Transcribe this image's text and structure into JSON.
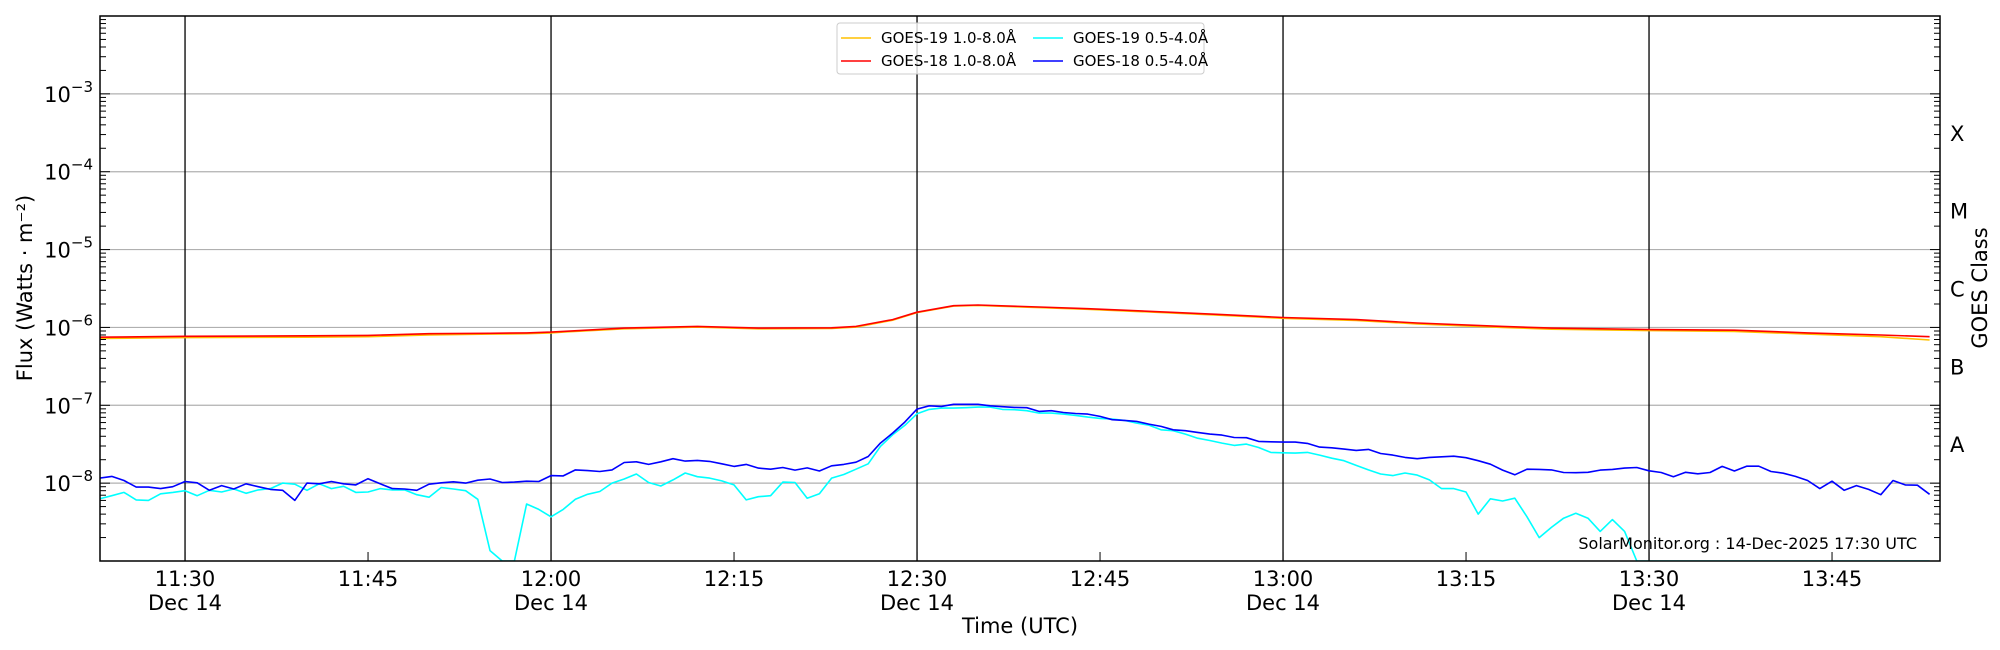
{
  "chart_data": {
    "type": "line",
    "title": "",
    "xlabel": "Time (UTC)",
    "ylabel": "Flux (Watts · m⁻²)",
    "yscale": "log",
    "ylim": [
      1e-09,
      0.01
    ],
    "xlim": [
      "11:23",
      "13:54"
    ],
    "grid": "horizontal at decades",
    "y_tick_base": "10",
    "y_tick_exponents": [
      "−8",
      "−7",
      "−6",
      "−5",
      "−4",
      "−3"
    ],
    "y_tick_values": [
      1e-08,
      1e-07,
      1e-06,
      1e-05,
      0.0001,
      0.001
    ],
    "x_ticks": [
      {
        "time": "11:30",
        "label": "11:30",
        "date": "Dec 14"
      },
      {
        "time": "11:45",
        "label": "11:45"
      },
      {
        "time": "12:00",
        "label": "12:00",
        "date": "Dec 14"
      },
      {
        "time": "12:15",
        "label": "12:15"
      },
      {
        "time": "12:30",
        "label": "12:30",
        "date": "Dec 14"
      },
      {
        "time": "12:45",
        "label": "12:45"
      },
      {
        "time": "13:00",
        "label": "13:00",
        "date": "Dec 14"
      },
      {
        "time": "13:15",
        "label": "13:15"
      },
      {
        "time": "13:30",
        "label": "13:30",
        "date": "Dec 14"
      },
      {
        "time": "13:45",
        "label": "13:45"
      }
    ],
    "vertical_lines": [
      "11:30",
      "12:00",
      "12:30",
      "13:00",
      "13:30"
    ],
    "right_axis": {
      "label": "GOES Class",
      "classes": [
        {
          "label": "A",
          "lower": 1e-08
        },
        {
          "label": "B",
          "lower": 1e-07
        },
        {
          "label": "C",
          "lower": 1e-06
        },
        {
          "label": "M",
          "lower": 1e-05
        },
        {
          "label": "X",
          "lower": 0.0001
        }
      ]
    },
    "legend_placement": "top-center",
    "annotation": "SolarMonitor.org : 14-Dec-2025 17:30 UTC",
    "series": [
      {
        "name": "GOES-19 1.0-8.0Å",
        "color": "#ffc000",
        "times": [
          "11:23",
          "11:30",
          "11:40",
          "11:45",
          "11:50",
          "11:55",
          "11:58",
          "12:00",
          "12:01",
          "12:06",
          "12:12",
          "12:17",
          "12:23",
          "12:25",
          "12:28",
          "12:30",
          "12:33",
          "12:35",
          "12:40",
          "12:44",
          "12:49",
          "12:55",
          "13:00",
          "13:06",
          "13:11",
          "13:18",
          "13:22",
          "13:30",
          "13:37",
          "13:43",
          "13:49",
          "13:53"
        ],
        "values": [
          7.2e-07,
          7.4e-07,
          7.5e-07,
          7.6e-07,
          8e-07,
          8.2e-07,
          8.3e-07,
          8.5e-07,
          8.7e-07,
          9.6e-07,
          1.01e-06,
          9.6e-07,
          9.7e-07,
          1.01e-06,
          1.24e-06,
          1.55e-06,
          1.88e-06,
          1.92e-06,
          1.8e-06,
          1.71e-06,
          1.58e-06,
          1.43e-06,
          1.31e-06,
          1.23e-06,
          1.11e-06,
          1e-06,
          9.5e-07,
          9.1e-07,
          8.9e-07,
          8.2e-07,
          7.6e-07,
          6.9e-07
        ]
      },
      {
        "name": "GOES-18 1.0-8.0Å",
        "color": "#ff0000",
        "times": [
          "11:23",
          "11:30",
          "11:40",
          "11:45",
          "11:50",
          "11:55",
          "11:58",
          "12:00",
          "12:01",
          "12:06",
          "12:12",
          "12:17",
          "12:23",
          "12:25",
          "12:28",
          "12:30",
          "12:33",
          "12:35",
          "12:40",
          "12:44",
          "12:49",
          "12:55",
          "13:00",
          "13:06",
          "13:11",
          "13:18",
          "13:22",
          "13:30",
          "13:37",
          "13:43",
          "13:49",
          "13:53"
        ],
        "values": [
          7.5e-07,
          7.7e-07,
          7.8e-07,
          7.9e-07,
          8.3e-07,
          8.4e-07,
          8.5e-07,
          8.7e-07,
          8.9e-07,
          9.8e-07,
          1.03e-06,
          9.8e-07,
          9.9e-07,
          1.03e-06,
          1.26e-06,
          1.57e-06,
          1.9e-06,
          1.94e-06,
          1.83e-06,
          1.74e-06,
          1.61e-06,
          1.46e-06,
          1.34e-06,
          1.26e-06,
          1.14e-06,
          1.03e-06,
          9.8e-07,
          9.4e-07,
          9.2e-07,
          8.5e-07,
          8e-07,
          7.6e-07
        ]
      },
      {
        "name": "GOES-19 0.5-4.0Å",
        "color": "#00ffff",
        "start": "11:23",
        "step_min": 1,
        "values": [
          6.3e-09,
          6.9e-09,
          7.6e-09,
          6.1e-09,
          6e-09,
          7.3e-09,
          7.6e-09,
          8e-09,
          6.9e-09,
          8.1e-09,
          7.7e-09,
          8.4e-09,
          7.4e-09,
          8.2e-09,
          8.5e-09,
          1e-08,
          9.7e-09,
          8.1e-09,
          9.8e-09,
          8.5e-09,
          9.1e-09,
          7.6e-09,
          7.7e-09,
          8.5e-09,
          8.2e-09,
          8.2e-09,
          7.1e-09,
          6.6e-09,
          8.8e-09,
          8.4e-09,
          8e-09,
          6.2e-09,
          1.36e-09,
          9e-10,
          9e-10,
          5.4e-09,
          4.6e-09,
          3.7e-09,
          4.6e-09,
          6.2e-09,
          7.2e-09,
          7.8e-09,
          1e-08,
          1.13e-08,
          1.31e-08,
          1.02e-08,
          9.2e-09,
          1.1e-08,
          1.35e-08,
          1.21e-08,
          1.16e-08,
          1.07e-08,
          9.5e-09,
          6.1e-09,
          6.7e-09,
          6.9e-09,
          1.03e-08,
          1.02e-08,
          6.4e-09,
          7.3e-09,
          1.16e-08,
          1.29e-08,
          1.51e-08,
          1.77e-08,
          2.96e-08,
          4.18e-08,
          5.51e-08,
          7.78e-08,
          8.85e-08,
          9.2e-08,
          9.2e-08,
          9.3e-08,
          9.48e-08,
          9.48e-08,
          8.85e-08,
          8.77e-08,
          8.51e-08,
          7.94e-08,
          7.94e-08,
          7.71e-08,
          7.41e-08,
          7.05e-08,
          6.78e-08,
          6.65e-08,
          6.39e-08,
          5.9e-08,
          5.57e-08,
          4.85e-08,
          4.71e-08,
          4.27e-08,
          3.78e-08,
          3.53e-08,
          3.27e-08,
          3.05e-08,
          3.17e-08,
          2.87e-08,
          2.48e-08,
          2.45e-08,
          2.43e-08,
          2.48e-08,
          2.29e-08,
          2.09e-08,
          1.94e-08,
          1.69e-08,
          1.48e-08,
          1.31e-08,
          1.25e-08,
          1.35e-08,
          1.27e-08,
          1.1e-08,
          8.5e-09,
          8.5e-09,
          7.7e-09,
          4e-09,
          6.3e-09,
          5.9e-09,
          6.4e-09,
          3.7e-09,
          2e-09,
          2.7e-09,
          3.55e-09,
          4.1e-09,
          3.55e-09,
          2.4e-09,
          3.4e-09,
          2.4e-09,
          9e-10,
          9e-10,
          9e-10,
          9e-10,
          9e-10,
          9e-10,
          9e-10,
          9e-10,
          9e-10,
          9e-10,
          9e-10,
          9e-10,
          9e-10,
          9e-10,
          9e-10,
          9e-10,
          9e-10,
          9e-10,
          9e-10,
          9e-10,
          9e-10,
          9e-10,
          9e-10,
          9e-10,
          9e-10
        ]
      },
      {
        "name": "GOES-18 0.5-4.0Å",
        "color": "#0000ff",
        "start": "11:23",
        "step_min": 1,
        "values": [
          1.16e-08,
          1.22e-08,
          1.08e-08,
          8.9e-09,
          8.9e-09,
          8.5e-09,
          9e-09,
          1.05e-08,
          1.01e-08,
          8.1e-09,
          9.3e-09,
          8.4e-09,
          9.8e-09,
          9e-09,
          8.3e-09,
          8.1e-09,
          6e-09,
          1e-08,
          9.8e-09,
          1.05e-08,
          9.8e-09,
          9.5e-09,
          1.14e-08,
          9.8e-09,
          8.5e-09,
          8.4e-09,
          8.1e-09,
          9.7e-09,
          1.01e-08,
          1.04e-08,
          1e-08,
          1.09e-08,
          1.13e-08,
          1.02e-08,
          1.03e-08,
          1.06e-08,
          1.05e-08,
          1.25e-08,
          1.24e-08,
          1.48e-08,
          1.45e-08,
          1.41e-08,
          1.48e-08,
          1.84e-08,
          1.88e-08,
          1.74e-08,
          1.88e-08,
          2.06e-08,
          1.92e-08,
          1.96e-08,
          1.9e-08,
          1.77e-08,
          1.64e-08,
          1.74e-08,
          1.56e-08,
          1.51e-08,
          1.59e-08,
          1.47e-08,
          1.57e-08,
          1.43e-08,
          1.67e-08,
          1.74e-08,
          1.86e-08,
          2.2e-08,
          3.27e-08,
          4.39e-08,
          6.08e-08,
          8.93e-08,
          9.86e-08,
          9.67e-08,
          1.03e-07,
          1.03e-07,
          1.03e-07,
          9.86e-08,
          9.58e-08,
          9.39e-08,
          9.3e-08,
          8.34e-08,
          8.51e-08,
          8.09e-08,
          7.85e-08,
          7.71e-08,
          7.19e-08,
          6.52e-08,
          6.39e-08,
          6.21e-08,
          5.74e-08,
          5.35e-08,
          4.85e-08,
          4.71e-08,
          4.48e-08,
          4.27e-08,
          4.14e-08,
          3.86e-08,
          3.83e-08,
          3.44e-08,
          3.4e-08,
          3.37e-08,
          3.37e-08,
          3.24e-08,
          2.9e-08,
          2.84e-08,
          2.74e-08,
          2.63e-08,
          2.71e-08,
          2.4e-08,
          2.29e-08,
          2.14e-08,
          2.06e-08,
          2.14e-08,
          2.18e-08,
          2.22e-08,
          2.12e-08,
          1.94e-08,
          1.75e-08,
          1.47e-08,
          1.28e-08,
          1.51e-08,
          1.5e-08,
          1.48e-08,
          1.37e-08,
          1.36e-08,
          1.38e-08,
          1.47e-08,
          1.5e-08,
          1.56e-08,
          1.59e-08,
          1.44e-08,
          1.37e-08,
          1.21e-08,
          1.38e-08,
          1.32e-08,
          1.37e-08,
          1.64e-08,
          1.43e-08,
          1.65e-08,
          1.65e-08,
          1.41e-08,
          1.34e-08,
          1.22e-08,
          1.08e-08,
          8.5e-09,
          1.06e-08,
          8.1e-09,
          9.3e-09,
          8.3e-09,
          7.1e-09,
          1.08e-08,
          9.5e-09,
          9.4e-09,
          7.2e-09
        ]
      }
    ]
  }
}
